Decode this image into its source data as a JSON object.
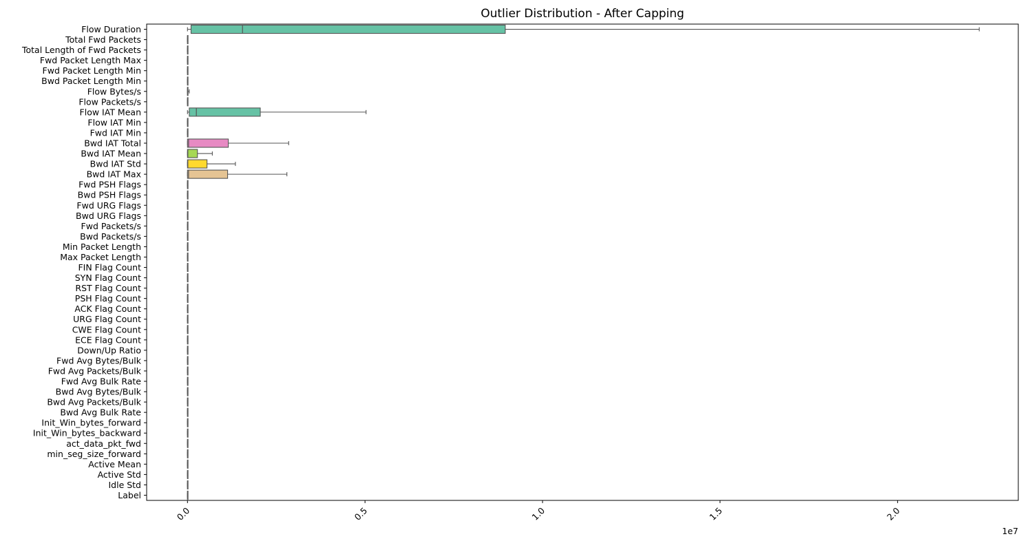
{
  "chart_data": {
    "type": "boxplot",
    "orientation": "horizontal",
    "title": "Outlier Distribution - After Capping",
    "xlabel": "",
    "ylabel": "",
    "x_axis_offset_label": "1e7",
    "xlim": [
      -0.115,
      2.34
    ],
    "x_ticks": [
      0.0,
      0.5,
      1.0,
      1.5,
      2.0
    ],
    "x_tick_labels": [
      "0.0",
      "0.5",
      "1.0",
      "1.5",
      "2.0"
    ],
    "x_tick_rotation": 45,
    "grid": false,
    "legend": "none",
    "units_note": "values in units of 1e7",
    "categories": [
      "Flow Duration",
      "Total Fwd Packets",
      "Total Length of Fwd Packets",
      "Fwd Packet Length Max",
      "Fwd Packet Length Min",
      "Bwd Packet Length Min",
      "Flow Bytes/s",
      "Flow Packets/s",
      "Flow IAT Mean",
      "Flow IAT Min",
      "Fwd IAT Min",
      "Bwd IAT Total",
      "Bwd IAT Mean",
      "Bwd IAT Std",
      "Bwd IAT Max",
      "Fwd PSH Flags",
      "Bwd PSH Flags",
      "Fwd URG Flags",
      "Bwd URG Flags",
      "Fwd Packets/s",
      "Bwd Packets/s",
      "Min Packet Length",
      "Max Packet Length",
      "FIN Flag Count",
      "SYN Flag Count",
      "RST Flag Count",
      "PSH Flag Count",
      "ACK Flag Count",
      "URG Flag Count",
      "CWE Flag Count",
      "ECE Flag Count",
      "Down/Up Ratio",
      "Fwd Avg Bytes/Bulk",
      "Fwd Avg Packets/Bulk",
      "Fwd Avg Bulk Rate",
      "Bwd Avg Bytes/Bulk",
      "Bwd Avg Packets/Bulk",
      "Bwd Avg Bulk Rate",
      "Init_Win_bytes_forward",
      "Init_Win_bytes_backward",
      "act_data_pkt_fwd",
      "min_seg_size_forward",
      "Active Mean",
      "Active Std",
      "Idle Std",
      "Label"
    ],
    "series": [
      {
        "whisker_low": 0.0,
        "q1": 0.01,
        "median": 0.155,
        "q3": 0.895,
        "whisker_high": 2.23,
        "color": "#66c2a5"
      },
      {
        "whisker_low": 0.0,
        "q1": 0.0,
        "median": 0.0,
        "q3": 0.0,
        "whisker_high": 0.0,
        "color": "#fc8d62"
      },
      {
        "whisker_low": 0.0,
        "q1": 0.0,
        "median": 0.0,
        "q3": 0.0,
        "whisker_high": 0.0,
        "color": "#8da0cb"
      },
      {
        "whisker_low": 0.0,
        "q1": 0.0,
        "median": 0.0,
        "q3": 0.0,
        "whisker_high": 0.0,
        "color": "#e78ac3"
      },
      {
        "whisker_low": 0.0,
        "q1": 0.0,
        "median": 0.0,
        "q3": 0.0,
        "whisker_high": 0.0,
        "color": "#a6d854"
      },
      {
        "whisker_low": 0.0,
        "q1": 0.0,
        "median": 0.0,
        "q3": 0.0,
        "whisker_high": 0.0,
        "color": "#ffd92f"
      },
      {
        "whisker_low": 0.0,
        "q1": 0.0,
        "median": 0.0,
        "q3": 0.0,
        "whisker_high": 0.005,
        "color": "#e5c494"
      },
      {
        "whisker_low": 0.0,
        "q1": 0.0,
        "median": 0.0,
        "q3": 0.0,
        "whisker_high": 0.0,
        "color": "#b3b3b3"
      },
      {
        "whisker_low": 0.0,
        "q1": 0.005,
        "median": 0.025,
        "q3": 0.205,
        "whisker_high": 0.503,
        "color": "#66c2a5"
      },
      {
        "whisker_low": 0.0,
        "q1": 0.0,
        "median": 0.0,
        "q3": 0.0,
        "whisker_high": 0.0,
        "color": "#fc8d62"
      },
      {
        "whisker_low": 0.0,
        "q1": 0.0,
        "median": 0.0,
        "q3": 0.0,
        "whisker_high": 0.0,
        "color": "#8da0cb"
      },
      {
        "whisker_low": 0.0,
        "q1": 0.0,
        "median": 0.003,
        "q3": 0.115,
        "whisker_high": 0.285,
        "color": "#e78ac3"
      },
      {
        "whisker_low": 0.0,
        "q1": 0.0,
        "median": 0.001,
        "q3": 0.028,
        "whisker_high": 0.07,
        "color": "#a6d854"
      },
      {
        "whisker_low": 0.0,
        "q1": 0.0,
        "median": 0.001,
        "q3": 0.055,
        "whisker_high": 0.135,
        "color": "#ffd92f"
      },
      {
        "whisker_low": 0.0,
        "q1": 0.0,
        "median": 0.003,
        "q3": 0.113,
        "whisker_high": 0.28,
        "color": "#e5c494"
      },
      {
        "whisker_low": 0.0,
        "q1": 0.0,
        "median": 0.0,
        "q3": 0.0,
        "whisker_high": 0.0,
        "color": "#b3b3b3"
      },
      {
        "whisker_low": 0.0,
        "q1": 0.0,
        "median": 0.0,
        "q3": 0.0,
        "whisker_high": 0.0,
        "color": "#66c2a5"
      },
      {
        "whisker_low": 0.0,
        "q1": 0.0,
        "median": 0.0,
        "q3": 0.0,
        "whisker_high": 0.0,
        "color": "#fc8d62"
      },
      {
        "whisker_low": 0.0,
        "q1": 0.0,
        "median": 0.0,
        "q3": 0.0,
        "whisker_high": 0.0,
        "color": "#8da0cb"
      },
      {
        "whisker_low": 0.0,
        "q1": 0.0,
        "median": 0.0,
        "q3": 0.0,
        "whisker_high": 0.0,
        "color": "#e78ac3"
      },
      {
        "whisker_low": 0.0,
        "q1": 0.0,
        "median": 0.0,
        "q3": 0.0,
        "whisker_high": 0.0,
        "color": "#a6d854"
      },
      {
        "whisker_low": 0.0,
        "q1": 0.0,
        "median": 0.0,
        "q3": 0.0,
        "whisker_high": 0.0,
        "color": "#ffd92f"
      },
      {
        "whisker_low": 0.0,
        "q1": 0.0,
        "median": 0.0,
        "q3": 0.0,
        "whisker_high": 0.0,
        "color": "#e5c494"
      },
      {
        "whisker_low": 0.0,
        "q1": 0.0,
        "median": 0.0,
        "q3": 0.0,
        "whisker_high": 0.0,
        "color": "#b3b3b3"
      },
      {
        "whisker_low": 0.0,
        "q1": 0.0,
        "median": 0.0,
        "q3": 0.0,
        "whisker_high": 0.0,
        "color": "#66c2a5"
      },
      {
        "whisker_low": 0.0,
        "q1": 0.0,
        "median": 0.0,
        "q3": 0.0,
        "whisker_high": 0.0,
        "color": "#fc8d62"
      },
      {
        "whisker_low": 0.0,
        "q1": 0.0,
        "median": 0.0,
        "q3": 0.0,
        "whisker_high": 0.0,
        "color": "#8da0cb"
      },
      {
        "whisker_low": 0.0,
        "q1": 0.0,
        "median": 0.0,
        "q3": 0.0,
        "whisker_high": 0.0,
        "color": "#e78ac3"
      },
      {
        "whisker_low": 0.0,
        "q1": 0.0,
        "median": 0.0,
        "q3": 0.0,
        "whisker_high": 0.0,
        "color": "#a6d854"
      },
      {
        "whisker_low": 0.0,
        "q1": 0.0,
        "median": 0.0,
        "q3": 0.0,
        "whisker_high": 0.0,
        "color": "#ffd92f"
      },
      {
        "whisker_low": 0.0,
        "q1": 0.0,
        "median": 0.0,
        "q3": 0.0,
        "whisker_high": 0.0,
        "color": "#e5c494"
      },
      {
        "whisker_low": 0.0,
        "q1": 0.0,
        "median": 0.0,
        "q3": 0.0,
        "whisker_high": 0.0,
        "color": "#b3b3b3"
      },
      {
        "whisker_low": 0.0,
        "q1": 0.0,
        "median": 0.0,
        "q3": 0.0,
        "whisker_high": 0.0,
        "color": "#66c2a5"
      },
      {
        "whisker_low": 0.0,
        "q1": 0.0,
        "median": 0.0,
        "q3": 0.0,
        "whisker_high": 0.0,
        "color": "#fc8d62"
      },
      {
        "whisker_low": 0.0,
        "q1": 0.0,
        "median": 0.0,
        "q3": 0.0,
        "whisker_high": 0.0,
        "color": "#8da0cb"
      },
      {
        "whisker_low": 0.0,
        "q1": 0.0,
        "median": 0.0,
        "q3": 0.0,
        "whisker_high": 0.0,
        "color": "#e78ac3"
      },
      {
        "whisker_low": 0.0,
        "q1": 0.0,
        "median": 0.0,
        "q3": 0.0,
        "whisker_high": 0.0,
        "color": "#a6d854"
      },
      {
        "whisker_low": 0.0,
        "q1": 0.0,
        "median": 0.0,
        "q3": 0.0,
        "whisker_high": 0.0,
        "color": "#ffd92f"
      },
      {
        "whisker_low": 0.0,
        "q1": 0.0,
        "median": 0.0,
        "q3": 0.0,
        "whisker_high": 0.0,
        "color": "#e5c494"
      },
      {
        "whisker_low": 0.0,
        "q1": 0.0,
        "median": 0.0,
        "q3": 0.0,
        "whisker_high": 0.0,
        "color": "#b3b3b3"
      },
      {
        "whisker_low": 0.0,
        "q1": 0.0,
        "median": 0.0,
        "q3": 0.0,
        "whisker_high": 0.0,
        "color": "#66c2a5"
      },
      {
        "whisker_low": 0.0,
        "q1": 0.0,
        "median": 0.0,
        "q3": 0.0,
        "whisker_high": 0.0,
        "color": "#fc8d62"
      },
      {
        "whisker_low": 0.0,
        "q1": 0.0,
        "median": 0.0,
        "q3": 0.0,
        "whisker_high": 0.0,
        "color": "#8da0cb"
      },
      {
        "whisker_low": 0.0,
        "q1": 0.0,
        "median": 0.0,
        "q3": 0.0,
        "whisker_high": 0.0,
        "color": "#e78ac3"
      },
      {
        "whisker_low": 0.0,
        "q1": 0.0,
        "median": 0.0,
        "q3": 0.0,
        "whisker_high": 0.0,
        "color": "#a6d854"
      },
      {
        "whisker_low": 0.0,
        "q1": 0.0,
        "median": 0.0,
        "q3": 0.0,
        "whisker_high": 0.0,
        "color": "#ffd92f"
      }
    ]
  }
}
